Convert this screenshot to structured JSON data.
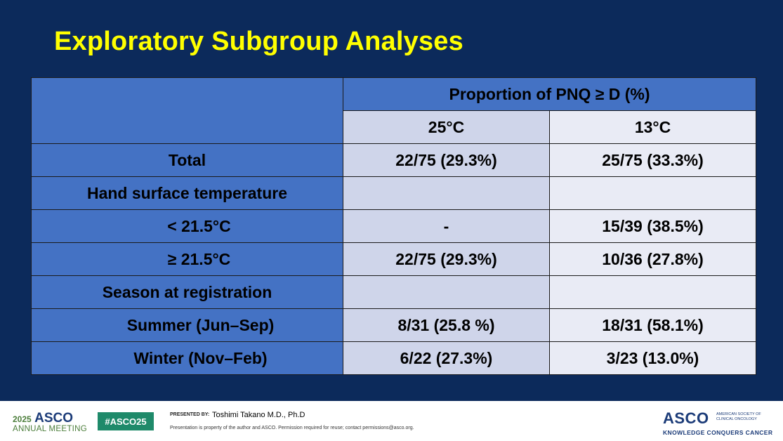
{
  "slide": {
    "title": "Exploratory Subgroup Analyses"
  },
  "table": {
    "group_header": "Proportion of PNQ ≥ D (%)",
    "columns": [
      "25°C",
      "13°C"
    ],
    "rows": [
      {
        "label": "Total",
        "v25": "22/75 (29.3%)",
        "v13": "25/75 (33.3%)"
      },
      {
        "label": "Hand surface temperature",
        "v25": "",
        "v13": ""
      },
      {
        "label": "< 21.5°C",
        "v25": "-",
        "v13": "15/39 (38.5%)"
      },
      {
        "label": "≥ 21.5°C",
        "v25": "22/75 (29.3%)",
        "v13": "10/36 (27.8%)"
      },
      {
        "label": "Season at registration",
        "v25": "",
        "v13": ""
      },
      {
        "label": "Summer (Jun–Sep)",
        "v25": "8/31 (25.8 %)",
        "v13": "18/31 (58.1%)"
      },
      {
        "label": "Winter (Nov–Feb)",
        "v25": "6/22 (27.3%)",
        "v13": "3/23 (13.0%)"
      }
    ]
  },
  "footer": {
    "meeting_year": "2025",
    "meeting_brand": "ASCO",
    "meeting_name": "ANNUAL MEETING",
    "hashtag": "#ASCO25",
    "presented_by_label": "PRESENTED BY:",
    "presenter": "Toshimi Takano M.D., Ph.D",
    "notice": "Presentation is property of the author and ASCO. Permission required for reuse; contact permissions@asco.org.",
    "org_brand": "ASCO",
    "org_name": "AMERICAN SOCIETY OF CLINICAL ONCOLOGY",
    "tagline": "KNOWLEDGE CONQUERS CANCER"
  }
}
